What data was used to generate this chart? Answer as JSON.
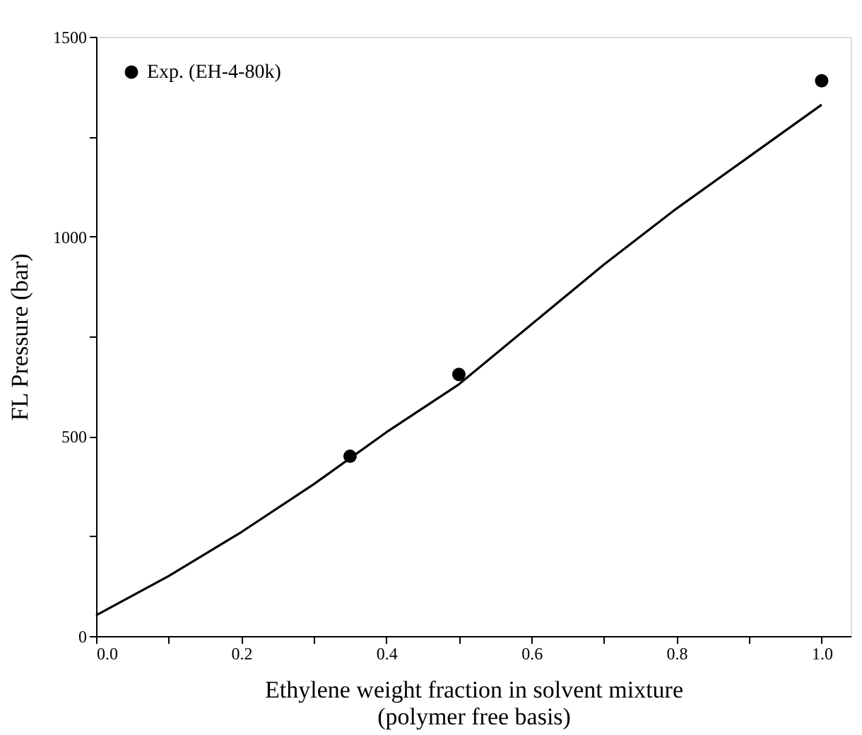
{
  "chart_data": {
    "type": "scatter",
    "xlabel": "Ethylene weight fraction in solvent mixture\n(polymer free basis)",
    "ylabel": "FL Pressure (bar)",
    "xlim": [
      0,
      1.04
    ],
    "ylim": [
      0,
      1500
    ],
    "xticks": [
      "0.0",
      {
        "value": 0.1,
        "label": null
      },
      {
        "value": 0.2,
        "label": "0.2"
      },
      {
        "value": 0.3,
        "label": null
      },
      {
        "value": 0.4,
        "label": "0.4"
      },
      {
        "value": 0.5,
        "label": null
      },
      {
        "value": 0.6,
        "label": "0.6"
      },
      {
        "value": 0.7,
        "label": null
      },
      {
        "value": 0.8,
        "label": "0.8"
      },
      {
        "value": 0.9,
        "label": null
      },
      {
        "value": 1.0,
        "label": "1.0"
      }
    ],
    "yticks": [
      0,
      {
        "value": 250,
        "label": null
      },
      500,
      {
        "value": 750,
        "label": null
      },
      1000,
      {
        "value": 1250,
        "label": null
      },
      1500
    ],
    "legend": "top left",
    "grid": false,
    "series": [
      {
        "name": "Exp. (EH-4-80k)",
        "marker": "circle",
        "color": "#000000",
        "x": [
          0.35,
          0.5,
          1.0
        ],
        "values": [
          450,
          655,
          1390
        ]
      },
      {
        "type": "line",
        "line_style": "solid",
        "color": "#000000",
        "x": [
          0.0,
          0.1,
          0.2,
          0.3,
          0.4,
          0.5,
          0.6,
          0.7,
          0.8,
          0.9,
          1.0
        ],
        "values": [
          52,
          150,
          260,
          380,
          510,
          630,
          780,
          930,
          1070,
          1200,
          1330
        ]
      }
    ]
  }
}
